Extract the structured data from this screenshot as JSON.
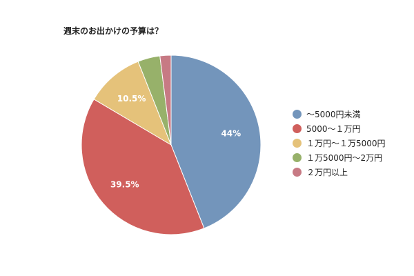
{
  "chart_data": {
    "type": "pie",
    "title": "週末のお出かけの予算は？",
    "categories": [
      "～5000円未満",
      "5000～１万円",
      "１万円～１万5000円",
      "１万5000円～2万円",
      "２万円以上"
    ],
    "values": [
      44,
      39.5,
      10.5,
      4,
      2
    ],
    "data_labels": [
      "44%",
      "39.5%",
      "10.5%",
      "",
      ""
    ],
    "colors": [
      "#7395bb",
      "#d05f5c",
      "#e5c27a",
      "#97b16a",
      "#c77a84"
    ],
    "legend_position": "right"
  }
}
